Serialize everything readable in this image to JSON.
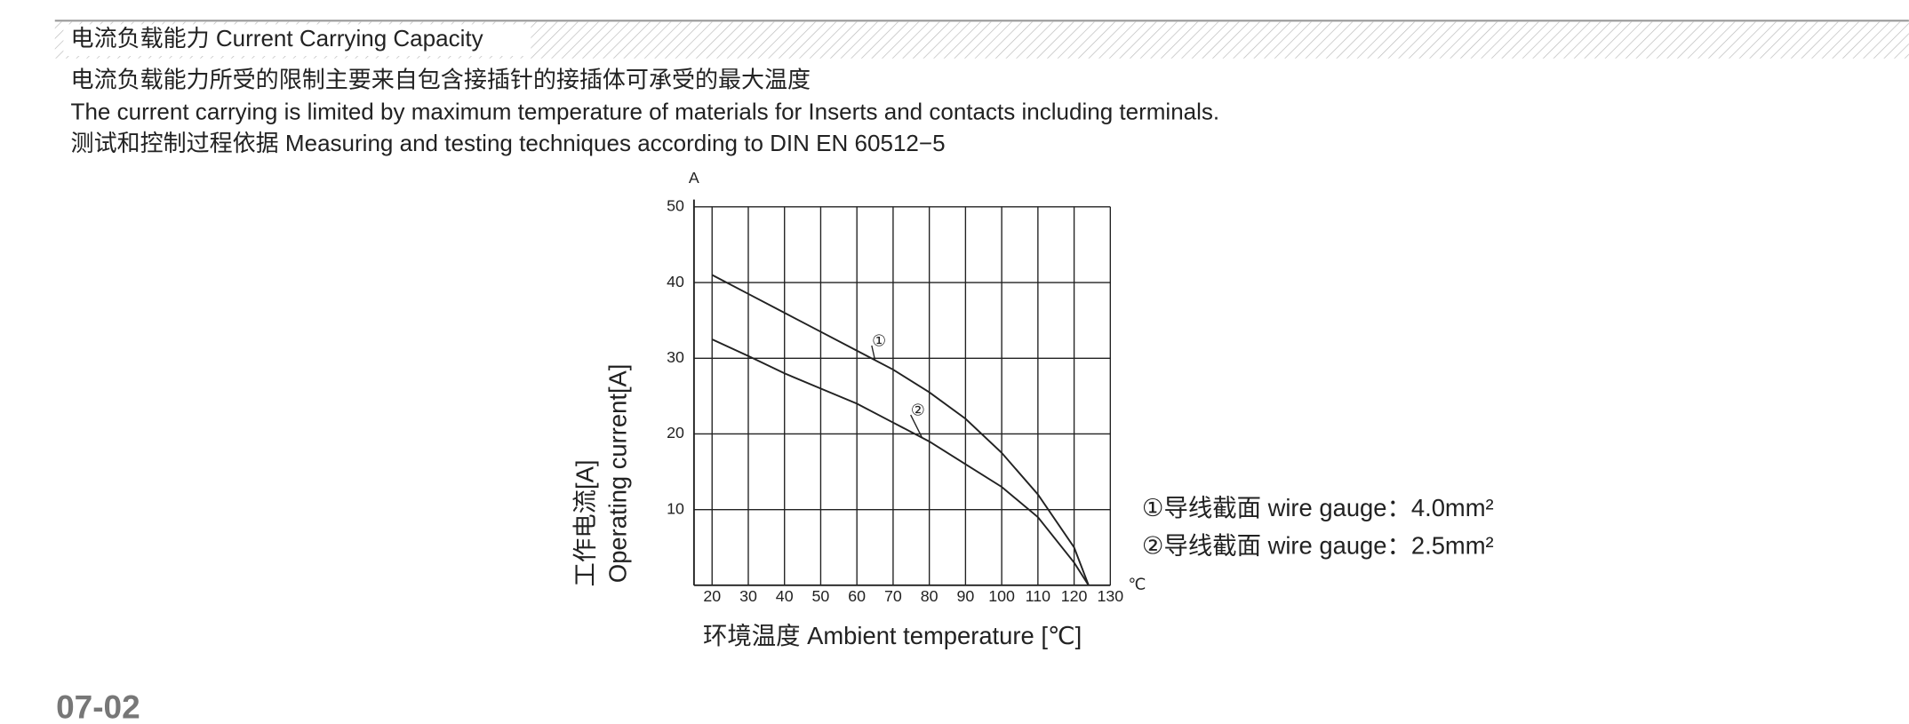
{
  "header": {
    "title": "电流负载能力 Current Carrying Capacity"
  },
  "body": {
    "lines": [
      "电流负载能力所受的限制主要来自包含接插针的接插体可承受的最大温度",
      "The current carrying is limited by maximum temperature of materials for Inserts and contacts including terminals.",
      "测试和控制过程依据 Measuring and testing techniques according to DIN EN 60512−5"
    ]
  },
  "page_number": "07-02",
  "chart_data": {
    "type": "line",
    "y_unit": "A",
    "x_unit": "℃",
    "y_label_cn": "工作电流[A]",
    "y_label": "Operating current[A]",
    "x_label": "环境温度 Ambient temperature [℃]",
    "x": [
      20,
      30,
      40,
      50,
      60,
      70,
      80,
      90,
      100,
      110,
      120,
      124
    ],
    "series": [
      {
        "name": "①导线截面 wire gauge：4.0mm²",
        "marker": "①",
        "color": "#222",
        "values": [
          41,
          38.5,
          36,
          33.5,
          31,
          28.5,
          25.5,
          22,
          17.5,
          12,
          5,
          0
        ]
      },
      {
        "name": "②导线截面 wire gauge：2.5mm²",
        "marker": "②",
        "color": "#222",
        "values": [
          32.5,
          30.3,
          28,
          26,
          24,
          21.5,
          19,
          16,
          13,
          9,
          3,
          0
        ]
      }
    ],
    "xlim": [
      15,
      130
    ],
    "xticks": [
      20,
      30,
      40,
      50,
      60,
      70,
      80,
      90,
      100,
      110,
      120,
      130
    ],
    "ylim": [
      0,
      50
    ],
    "yticks": [
      10,
      20,
      30,
      40,
      50
    ],
    "grid": true
  }
}
